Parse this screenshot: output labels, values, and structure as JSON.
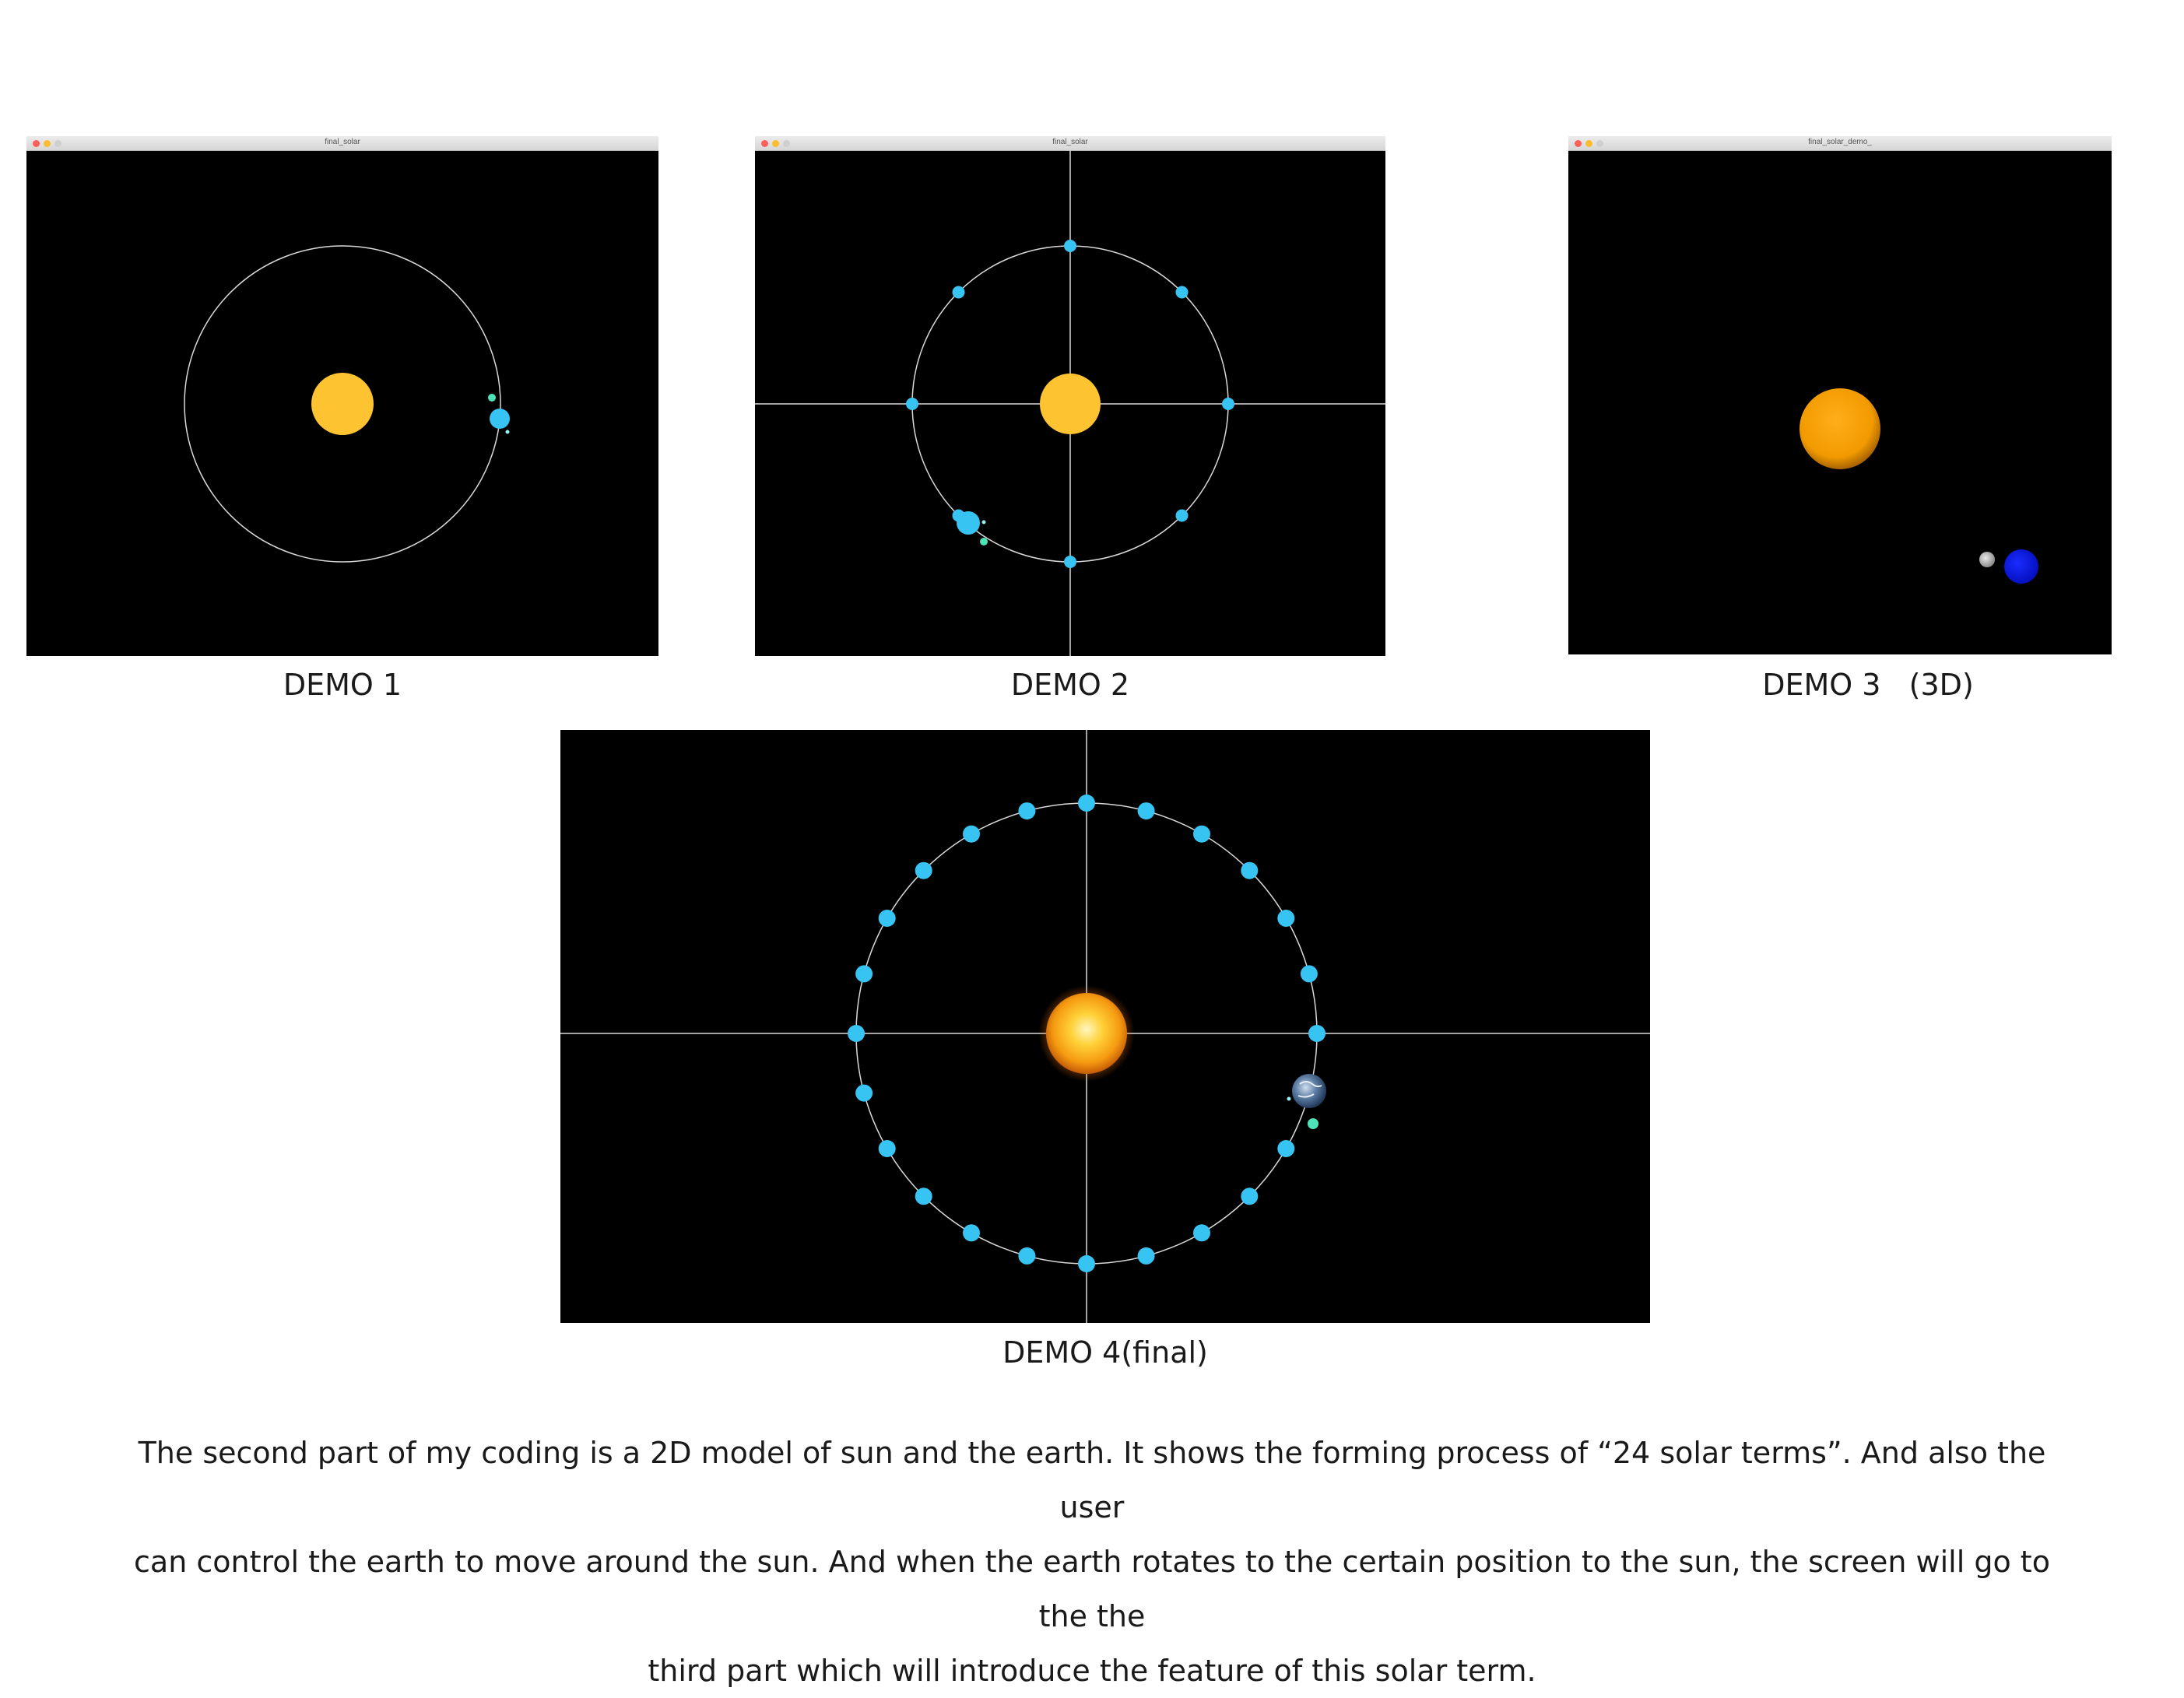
{
  "windows": {
    "demo1": {
      "title": "final_solar"
    },
    "demo2": {
      "title": "final_solar"
    },
    "demo3": {
      "title": "final_solar_demo_"
    }
  },
  "captions": {
    "demo1": "DEMO 1",
    "demo2": "DEMO 2",
    "demo3": "DEMO 3   (3D)",
    "demo4": "DEMO 4(final)"
  },
  "description": {
    "line1": "The second part of my coding is a 2D model of sun and the earth. It shows the forming process  of “24 solar terms”. And also the user",
    "line2": "can control the earth to move around the sun. And when the earth rotates to the certain position to the sun, the screen will go to the the",
    "line3": "third part which will introduce the feature of this solar term."
  },
  "colors": {
    "sun": "#fdc330",
    "marker": "#38c4f2",
    "moon": "#4fe3b8",
    "orbit": "#d9d9d9",
    "sun3d": "#f7a000",
    "earth3d": "#0a13e6"
  },
  "icons": {
    "close": "close-icon",
    "minimize": "minimize-icon",
    "maximize": "maximize-icon"
  }
}
